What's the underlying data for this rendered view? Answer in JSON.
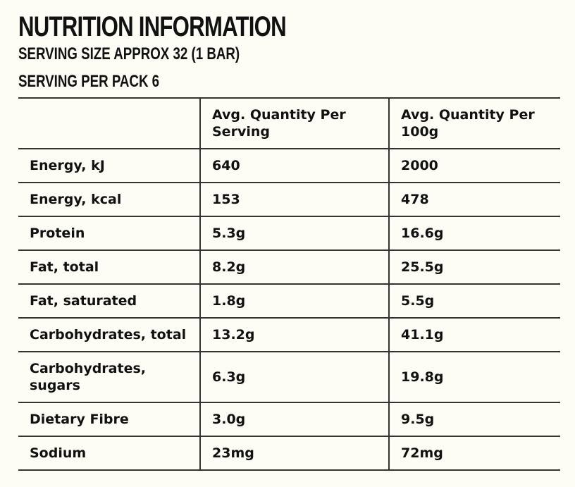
{
  "heading": {
    "title": "NUTRITION INFORMATION",
    "serving_size": "SERVING SIZE APPROX 32 (1 BAR)",
    "servings_per_pack": "SERVING PER PACK 6"
  },
  "table": {
    "headers": [
      "",
      "Avg. Quantity Per Serving",
      "Avg. Quantity Per 100g"
    ],
    "rows": [
      {
        "nutrient": "Energy, kJ",
        "per_serving": "640",
        "per_100g": "2000"
      },
      {
        "nutrient": "Energy, kcal",
        "per_serving": "153",
        "per_100g": "478"
      },
      {
        "nutrient": "Protein",
        "per_serving": "5.3g",
        "per_100g": "16.6g"
      },
      {
        "nutrient": "Fat, total",
        "per_serving": "8.2g",
        "per_100g": "25.5g"
      },
      {
        "nutrient": "Fat, saturated",
        "per_serving": "1.8g",
        "per_100g": "5.5g"
      },
      {
        "nutrient": "Carbohydrates, total",
        "per_serving": "13.2g",
        "per_100g": "41.1g"
      },
      {
        "nutrient": "Carbohydrates, sugars",
        "per_serving": "6.3g",
        "per_100g": "19.8g"
      },
      {
        "nutrient": "Dietary Fibre",
        "per_serving": "3.0g",
        "per_100g": "9.5g"
      },
      {
        "nutrient": "Sodium",
        "per_serving": "23mg",
        "per_100g": "72mg"
      }
    ]
  }
}
